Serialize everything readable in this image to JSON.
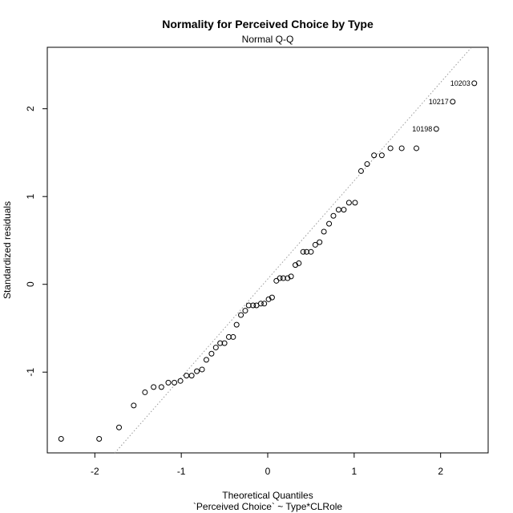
{
  "chart_data": {
    "type": "scatter",
    "title": "Normality for Perceived Choice by Type",
    "subtitle": "Normal Q-Q",
    "xlabel": "Theoretical Quantiles",
    "xlabel2": "`Perceived Choice` ~ Type*CLRole",
    "ylabel": "Standardized residuals",
    "xlim": [
      -2.55,
      2.55
    ],
    "ylim": [
      -1.92,
      2.7
    ],
    "xticks": [
      -2,
      -1,
      0,
      1,
      2
    ],
    "xtick_labels": [
      "-2",
      "-1",
      "0",
      "1",
      "2"
    ],
    "yticks": [
      -1,
      0,
      1,
      2
    ],
    "ytick_labels": [
      "-1",
      "0",
      "1",
      "2"
    ],
    "grid": false,
    "reference_line": {
      "style": "dotted",
      "color": "#999999",
      "intercept": 0.06,
      "slope": 1.12
    },
    "points": [
      {
        "x": -2.39,
        "y": -1.76
      },
      {
        "x": -1.95,
        "y": -1.76
      },
      {
        "x": -1.72,
        "y": -1.63
      },
      {
        "x": -1.55,
        "y": -1.38
      },
      {
        "x": -1.42,
        "y": -1.23
      },
      {
        "x": -1.32,
        "y": -1.17
      },
      {
        "x": -1.23,
        "y": -1.17
      },
      {
        "x": -1.15,
        "y": -1.12
      },
      {
        "x": -1.08,
        "y": -1.12
      },
      {
        "x": -1.01,
        "y": -1.1
      },
      {
        "x": -0.94,
        "y": -1.04
      },
      {
        "x": -0.88,
        "y": -1.04
      },
      {
        "x": -0.82,
        "y": -0.99
      },
      {
        "x": -0.76,
        "y": -0.97
      },
      {
        "x": -0.71,
        "y": -0.86
      },
      {
        "x": -0.65,
        "y": -0.79
      },
      {
        "x": -0.6,
        "y": -0.72
      },
      {
        "x": -0.55,
        "y": -0.67
      },
      {
        "x": -0.5,
        "y": -0.67
      },
      {
        "x": -0.45,
        "y": -0.6
      },
      {
        "x": -0.4,
        "y": -0.6
      },
      {
        "x": -0.36,
        "y": -0.46
      },
      {
        "x": -0.31,
        "y": -0.35
      },
      {
        "x": -0.26,
        "y": -0.3
      },
      {
        "x": -0.22,
        "y": -0.24
      },
      {
        "x": -0.17,
        "y": -0.24
      },
      {
        "x": -0.13,
        "y": -0.24
      },
      {
        "x": -0.08,
        "y": -0.22
      },
      {
        "x": -0.04,
        "y": -0.22
      },
      {
        "x": 0.01,
        "y": -0.17
      },
      {
        "x": 0.05,
        "y": -0.15
      },
      {
        "x": 0.1,
        "y": 0.04
      },
      {
        "x": 0.14,
        "y": 0.07
      },
      {
        "x": 0.18,
        "y": 0.07
      },
      {
        "x": 0.23,
        "y": 0.07
      },
      {
        "x": 0.27,
        "y": 0.09
      },
      {
        "x": 0.32,
        "y": 0.22
      },
      {
        "x": 0.36,
        "y": 0.24
      },
      {
        "x": 0.41,
        "y": 0.37
      },
      {
        "x": 0.45,
        "y": 0.37
      },
      {
        "x": 0.5,
        "y": 0.37
      },
      {
        "x": 0.55,
        "y": 0.45
      },
      {
        "x": 0.6,
        "y": 0.48
      },
      {
        "x": 0.65,
        "y": 0.6
      },
      {
        "x": 0.71,
        "y": 0.69
      },
      {
        "x": 0.76,
        "y": 0.78
      },
      {
        "x": 0.82,
        "y": 0.85
      },
      {
        "x": 0.88,
        "y": 0.85
      },
      {
        "x": 0.94,
        "y": 0.93
      },
      {
        "x": 1.01,
        "y": 0.93
      },
      {
        "x": 1.08,
        "y": 1.29
      },
      {
        "x": 1.15,
        "y": 1.37
      },
      {
        "x": 1.23,
        "y": 1.47
      },
      {
        "x": 1.32,
        "y": 1.47
      },
      {
        "x": 1.42,
        "y": 1.55
      },
      {
        "x": 1.55,
        "y": 1.55
      },
      {
        "x": 1.72,
        "y": 1.55
      },
      {
        "x": 1.95,
        "y": 1.77,
        "label": "10198"
      },
      {
        "x": 2.14,
        "y": 2.08,
        "label": "10217"
      },
      {
        "x": 2.39,
        "y": 2.29,
        "label": "10203"
      }
    ]
  }
}
